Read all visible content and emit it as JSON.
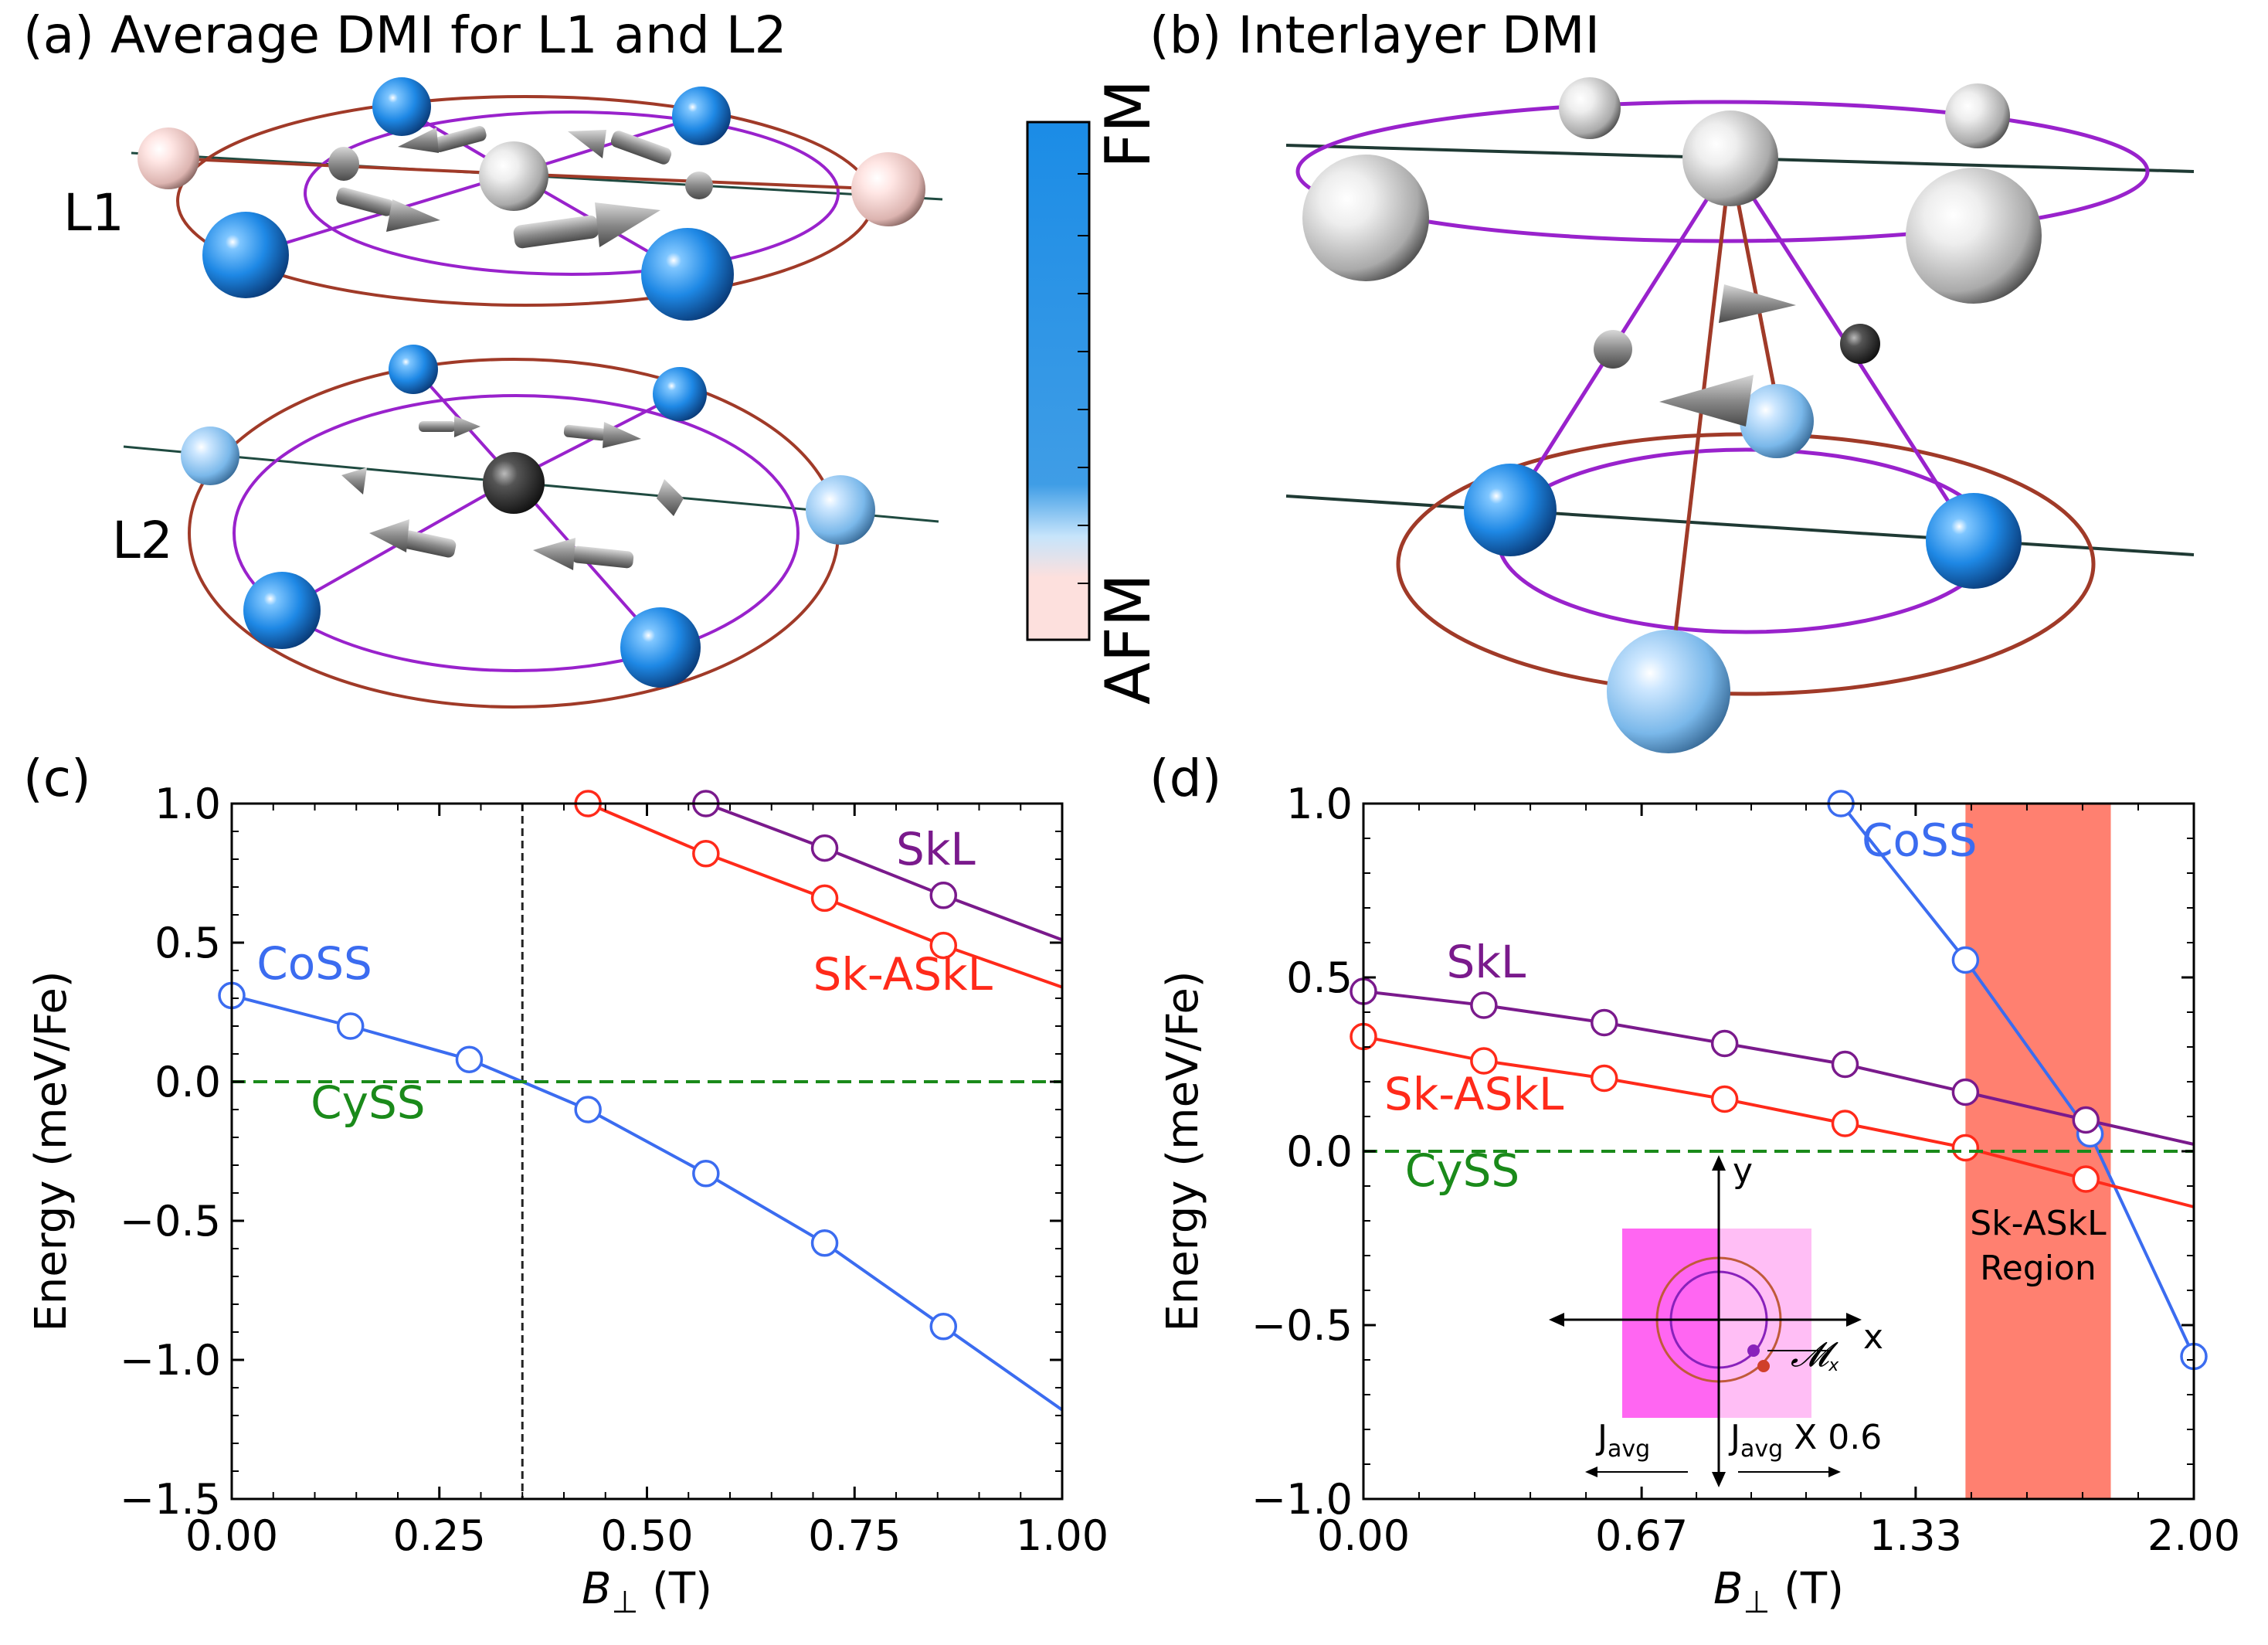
{
  "panel_a": {
    "title": "(a) Average DMI for L1 and L2",
    "layer1": "L1",
    "layer2": "L2"
  },
  "colorbar": {
    "top_label": "FM",
    "bottom_label": "AFM"
  },
  "panel_b": {
    "title": "(b) Interlayer DMI"
  },
  "colors": {
    "CoSS": "#3b6cf0",
    "SkL": "#7a1a8c",
    "SkASkL": "#ff2a1a",
    "CySS": "#1a8a1a",
    "region": "#ff8070",
    "ring_outer": "#a03a28",
    "ring_inner": "#9922cc",
    "atom_blue": "#1e88e5"
  },
  "chart_data": [
    {
      "panel": "(c)",
      "type": "line",
      "xlabel_main": "B",
      "xlabel_sub": "⊥",
      "xlabel_unit": "(T)",
      "ylabel": "Energy (meV/Fe)",
      "xlim": [
        0,
        1.0
      ],
      "ylim": [
        -1.5,
        1.0
      ],
      "xticks": [
        0,
        0.25,
        0.5,
        0.75,
        1.0
      ],
      "xtick_labels": [
        "0.00",
        "0.25",
        "0.50",
        "0.75",
        "1.00"
      ],
      "yticks": [
        -1.5,
        -1.0,
        -0.5,
        0.0,
        0.5,
        1.0
      ],
      "ytick_labels": [
        "−1.5",
        "−1.0",
        "−0.5",
        "0.0",
        "0.5",
        "1.0"
      ],
      "vline_x": 0.35,
      "series": [
        {
          "name": "CoSS",
          "color": "#3b6cf0",
          "x": [
            0,
            0.143,
            0.286,
            0.35,
            0.429,
            0.571,
            0.714,
            0.857,
            1.0
          ],
          "y": [
            0.31,
            0.2,
            0.08,
            0.0,
            -0.1,
            -0.33,
            -0.58,
            -0.88,
            -1.18
          ],
          "markers": [
            0,
            0.143,
            0.286,
            0.429,
            0.571,
            0.714,
            0.857
          ]
        },
        {
          "name": "SkL",
          "color": "#7a1a8c",
          "x": [
            0.571,
            0.714,
            0.857,
            1.0
          ],
          "y": [
            1.0,
            0.84,
            0.67,
            0.51
          ],
          "markers": [
            0.571,
            0.714,
            0.857
          ]
        },
        {
          "name": "Sk-ASkL",
          "color": "#ff2a1a",
          "x": [
            0.429,
            0.571,
            0.714,
            0.857,
            1.0
          ],
          "y": [
            1.0,
            0.82,
            0.66,
            0.49,
            0.34
          ],
          "markers": [
            0.429,
            0.571,
            0.714,
            0.857
          ]
        },
        {
          "name": "CySS",
          "color": "#1a8a1a",
          "x": [
            0,
            1.0
          ],
          "y": [
            0,
            0
          ],
          "dashed": true,
          "markers": []
        }
      ],
      "labels": [
        {
          "text": "CoSS",
          "x": 0.03,
          "y": 0.37,
          "color": "#3b6cf0"
        },
        {
          "text": "CySS",
          "x": 0.095,
          "y": -0.13,
          "color": "#1a8a1a"
        },
        {
          "text": "SkL",
          "x": 0.8,
          "y": 0.78,
          "color": "#7a1a8c"
        },
        {
          "text": "Sk-ASkL",
          "x": 0.7,
          "y": 0.33,
          "color": "#ff2a1a"
        }
      ]
    },
    {
      "panel": "(d)",
      "type": "line",
      "xlabel_main": "B",
      "xlabel_sub": "⊥",
      "xlabel_unit": "(T)",
      "ylabel": "Energy (meV/Fe)",
      "xlim": [
        0,
        2.0
      ],
      "ylim": [
        -1.0,
        1.0
      ],
      "xticks": [
        0,
        0.67,
        1.33,
        2.0
      ],
      "xtick_labels": [
        "0.00",
        "0.67",
        "1.33",
        "2.00"
      ],
      "yticks": [
        -1.0,
        -0.5,
        0.0,
        0.5,
        1.0
      ],
      "ytick_labels": [
        "−1.0",
        "−0.5",
        "0.0",
        "0.5",
        "1.0"
      ],
      "region": {
        "x0": 1.45,
        "x1": 1.8,
        "label_line1": "Sk-ASkL",
        "label_line2": "Region"
      },
      "series": [
        {
          "name": "CoSS",
          "color": "#3b6cf0",
          "x": [
            1.15,
            1.45,
            1.75,
            2.0
          ],
          "y": [
            1.0,
            0.55,
            0.05,
            -0.59
          ],
          "markers": [
            1.15,
            1.45,
            1.75,
            2.0
          ]
        },
        {
          "name": "SkL",
          "color": "#7a1a8c",
          "x": [
            0,
            0.29,
            0.58,
            0.87,
            1.16,
            1.45,
            1.74,
            2.0
          ],
          "y": [
            0.46,
            0.42,
            0.37,
            0.31,
            0.25,
            0.17,
            0.09,
            0.02
          ],
          "markers": [
            0,
            0.29,
            0.58,
            0.87,
            1.16,
            1.45,
            1.74
          ]
        },
        {
          "name": "Sk-ASkL",
          "color": "#ff2a1a",
          "x": [
            0,
            0.29,
            0.58,
            0.87,
            1.16,
            1.45,
            1.74,
            2.0
          ],
          "y": [
            0.33,
            0.26,
            0.21,
            0.15,
            0.08,
            0.01,
            -0.08,
            -0.16
          ],
          "markers": [
            0,
            0.29,
            0.58,
            0.87,
            1.16,
            1.45,
            1.74
          ]
        },
        {
          "name": "CySS",
          "color": "#1a8a1a",
          "x": [
            0,
            2.0
          ],
          "y": [
            0,
            0
          ],
          "dashed": true,
          "markers": []
        }
      ],
      "labels": [
        {
          "text": "CoSS",
          "x": 1.2,
          "y": 0.85,
          "color": "#3b6cf0"
        },
        {
          "text": "SkL",
          "x": 0.2,
          "y": 0.5,
          "color": "#7a1a8c"
        },
        {
          "text": "Sk-ASkL",
          "x": 0.05,
          "y": 0.12,
          "color": "#ff2a1a"
        },
        {
          "text": "CySS",
          "x": 0.1,
          "y": -0.1,
          "color": "#1a8a1a"
        }
      ],
      "inset": {
        "axis_x": "x",
        "axis_y": "y",
        "moment_label": "𝓜",
        "moment_sub": "x",
        "left_label": "J",
        "left_sub": "avg",
        "right_label": "J",
        "right_sub": "avg",
        "right_suffix": " X 0.6"
      }
    }
  ]
}
